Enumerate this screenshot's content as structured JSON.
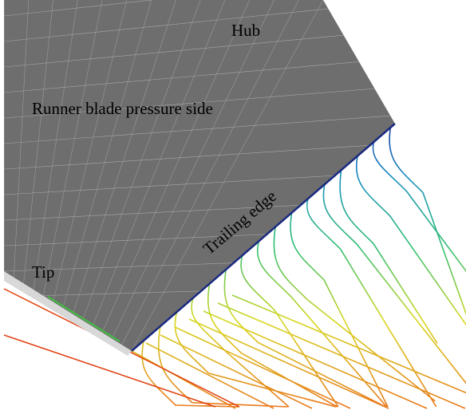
{
  "labels": {
    "hub": "Hub",
    "pressure_side": "Runner blade pressure side",
    "trailing_edge": "Trailing edge",
    "tip": "Tip"
  }
}
